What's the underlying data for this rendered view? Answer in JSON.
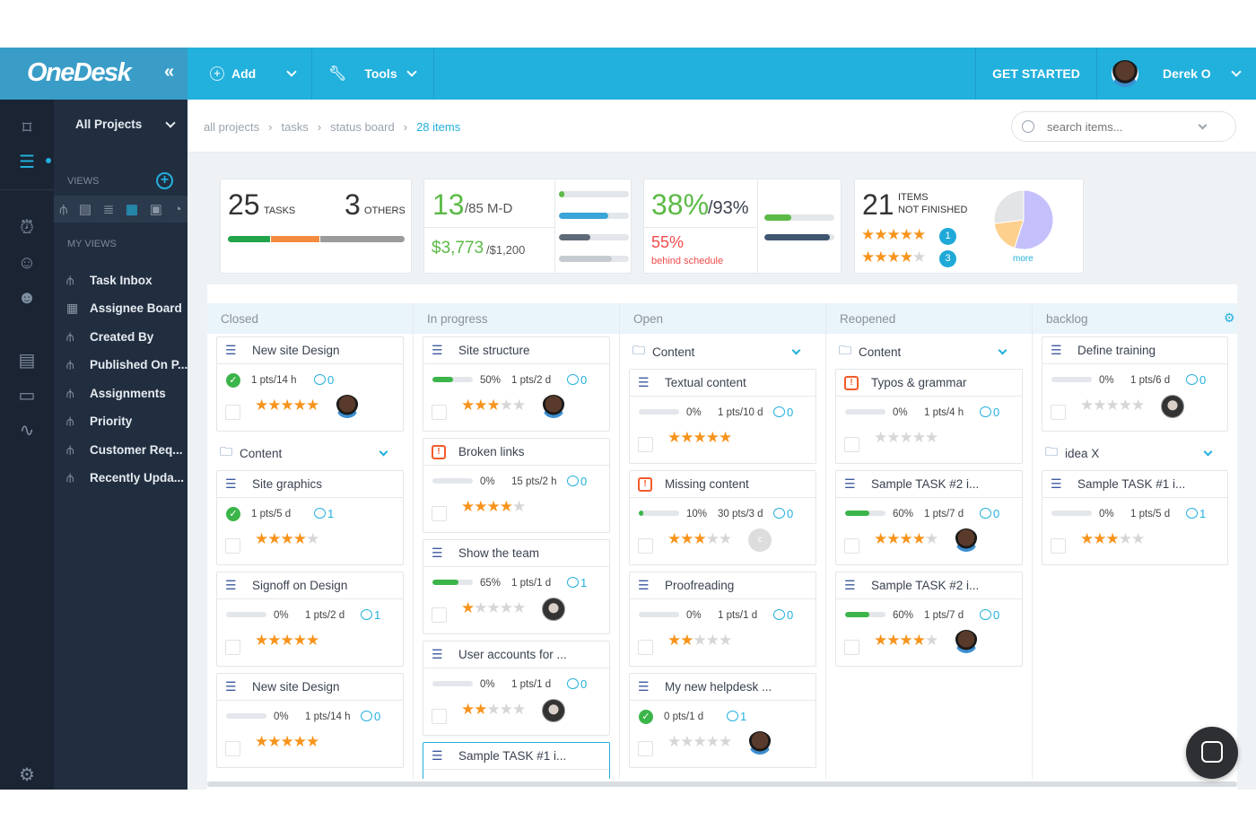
{
  "header": {
    "logo": "OneDesk",
    "collapse": "«",
    "add": "Add",
    "tools": "Tools",
    "get_started": "GET STARTED",
    "user": "Derek O"
  },
  "sidebar": {
    "project": "All Projects",
    "views_label": "VIEWS",
    "my_views_label": "MY VIEWS",
    "items": [
      {
        "label": "Task Inbox",
        "icon": "hierarchy-icon"
      },
      {
        "label": "Assignee Board",
        "icon": "grid-icon"
      },
      {
        "label": "Created By",
        "icon": "hierarchy-icon"
      },
      {
        "label": "Published On P...",
        "icon": "hierarchy-icon"
      },
      {
        "label": "Assignments",
        "icon": "hierarchy-icon"
      },
      {
        "label": "Priority",
        "icon": "hierarchy-icon"
      },
      {
        "label": "Customer Req...",
        "icon": "hierarchy-icon"
      },
      {
        "label": "Recently Upda...",
        "icon": "hierarchy-icon"
      }
    ]
  },
  "breadcrumb": {
    "items": [
      "all projects",
      "tasks",
      "status board"
    ],
    "current": "28 items"
  },
  "search": {
    "placeholder": "search items..."
  },
  "stats": {
    "tasks": "25",
    "tasks_label": "TASKS",
    "others": "3",
    "others_label": "OTHERS",
    "split": [
      24,
      28,
      48
    ],
    "effort": "13",
    "effort_total": "/85 M-D",
    "cost": "$3,773",
    "cost_total": "/$1,200",
    "effort_bars": [
      8,
      70,
      45,
      75
    ],
    "percent": "38%",
    "percent_total": "/93%",
    "behind": "55%",
    "behind_label": "behind schedule",
    "percent_bars": [
      38,
      93
    ],
    "items": "21",
    "items_label1": "ITEMS",
    "items_label2": "NOT FINISHED",
    "rating5_count": "1",
    "rating4_count": "3",
    "more": "more",
    "pie": [
      {
        "value": 55,
        "color": "#c4c0fb"
      },
      {
        "value": 18,
        "color": "#fdd08e"
      },
      {
        "value": 27,
        "color": "#e3e4e6"
      }
    ]
  },
  "colors": {
    "accent": "#22b0dc",
    "green": "#3bb54a",
    "orange": "#f7941d",
    "sidebar": "#212e40"
  },
  "columns": [
    {
      "name": "Closed",
      "items": [
        {
          "title": "New site Design",
          "done": true,
          "pts": "1 pts/14 h",
          "comments": "0",
          "stars": 5,
          "avatar": "m"
        },
        {
          "group": "Content"
        },
        {
          "title": "Site graphics",
          "done": true,
          "pts": "1 pts/5 d",
          "comments": "1",
          "stars": 4
        },
        {
          "title": "Signoff on Design",
          "progress": 0,
          "pts": "1 pts/2 d",
          "comments": "1",
          "stars": 5
        },
        {
          "title": "New site Design",
          "progress": 0,
          "pts": "1 pts/14 h",
          "comments": "0",
          "stars": 5
        }
      ]
    },
    {
      "name": "In progress",
      "items": [
        {
          "title": "Site structure",
          "progress": 50,
          "pts": "1 pts/2 d",
          "comments": "0",
          "stars": 3,
          "avatar": "m"
        },
        {
          "title": "Broken links",
          "bug": true,
          "progress": 0,
          "pts": "15 pts/2 h",
          "comments": "0",
          "stars": 4
        },
        {
          "title": "Show the team",
          "progress": 65,
          "pts": "1 pts/1 d",
          "comments": "1",
          "stars": 1,
          "avatar": "f"
        },
        {
          "title": "User accounts for ...",
          "progress": 0,
          "pts": "1 pts/1 d",
          "comments": "0",
          "stars": 2,
          "avatar": "f"
        },
        {
          "title": "Sample TASK #1 i...",
          "selected": true
        }
      ]
    },
    {
      "name": "Open",
      "items": [
        {
          "group": "Content"
        },
        {
          "title": "Textual content",
          "progress": 0,
          "pts": "1 pts/10 d",
          "comments": "0",
          "stars": 5
        },
        {
          "title": "Missing content",
          "bug": true,
          "progress": 10,
          "pts": "30 pts/3 d",
          "comments": "0",
          "stars": 3,
          "avatar": "c",
          "avatar_text": "c"
        },
        {
          "title": "Proofreading",
          "progress": 0,
          "pts": "1 pts/1 d",
          "comments": "0",
          "stars": 2
        },
        {
          "title": "My new helpdesk ...",
          "done": true,
          "pts": "0 pts/1 d",
          "comments": "1",
          "stars": 0,
          "avatar": "m"
        }
      ]
    },
    {
      "name": "Reopened",
      "items": [
        {
          "group": "Content"
        },
        {
          "title": "Typos & grammar",
          "bug": true,
          "progress": 0,
          "pts": "1 pts/4 h",
          "comments": "0",
          "stars": 0
        },
        {
          "title": "Sample TASK #2 i...",
          "progress": 60,
          "pts": "1 pts/7 d",
          "comments": "0",
          "stars": 4,
          "avatar": "m"
        },
        {
          "title": "Sample TASK #2 i...",
          "progress": 60,
          "pts": "1 pts/7 d",
          "comments": "0",
          "stars": 4,
          "avatar": "m"
        }
      ]
    },
    {
      "name": "backlog",
      "items": [
        {
          "title": "Define training",
          "progress": 0,
          "pts": "1 pts/6 d",
          "comments": "0",
          "stars": 0,
          "avatar": "f"
        },
        {
          "group": "idea X"
        },
        {
          "title": "Sample TASK #1 i...",
          "progress": 0,
          "pts": "1 pts/5 d",
          "comments": "1",
          "stars": 3
        }
      ]
    }
  ]
}
